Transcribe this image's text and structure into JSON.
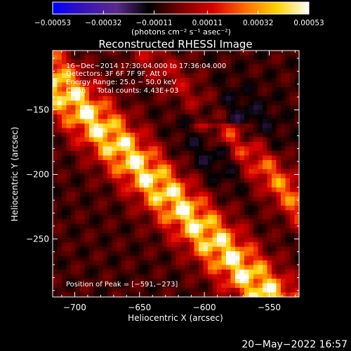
{
  "chart_data": {
    "type": "heatmap",
    "title": "Reconstructed RHESSI Image",
    "xlabel": "Heliocentric X (arcsec)",
    "ylabel": "Heliocentric Y (arcsec)",
    "xlim": [
      -717,
      -527
    ],
    "ylim": [
      -295,
      -104
    ],
    "x_ticks": [
      -700,
      -650,
      -600,
      -550
    ],
    "y_ticks": [
      -150,
      -200,
      -250
    ],
    "x_tick_labels": [
      "−700",
      "−650",
      "−600",
      "−550"
    ],
    "y_tick_labels": [
      "−150",
      "−200",
      "−250"
    ],
    "colorbar": {
      "min": -0.00053,
      "max": 0.00053,
      "ticks": [
        -0.00053,
        -0.00032,
        -0.00011,
        0.00011,
        0.00032,
        0.00053
      ],
      "tick_labels": [
        "−0.00053",
        "−0.00032",
        "−0.00011",
        "0.00011",
        "0.00032",
        "0.00053"
      ],
      "unit_label": "(photons cm⁻² s⁻¹ asec⁻²)",
      "colors": [
        "#0000ff",
        "#3a14b4",
        "#5a2a8c",
        "#000000",
        "#7a0000",
        "#d80000",
        "#ff6a00",
        "#ffd200",
        "#ffffff"
      ]
    },
    "peak": {
      "x": -591,
      "y": -273
    },
    "grid": false,
    "annotations": [
      "16−Dec−2014 17:30:04.000 to 17:36:04.000",
      "Detectors: 3F 6F 7F 9F, Att 0",
      "Energy Range: 25.0 − 50.0 keV",
      "Clean     Total counts: 4.43E+03",
      "Position of Peak = [−591,−273]"
    ]
  },
  "footer": {
    "timestamp": "20−May−2022 16:57"
  }
}
